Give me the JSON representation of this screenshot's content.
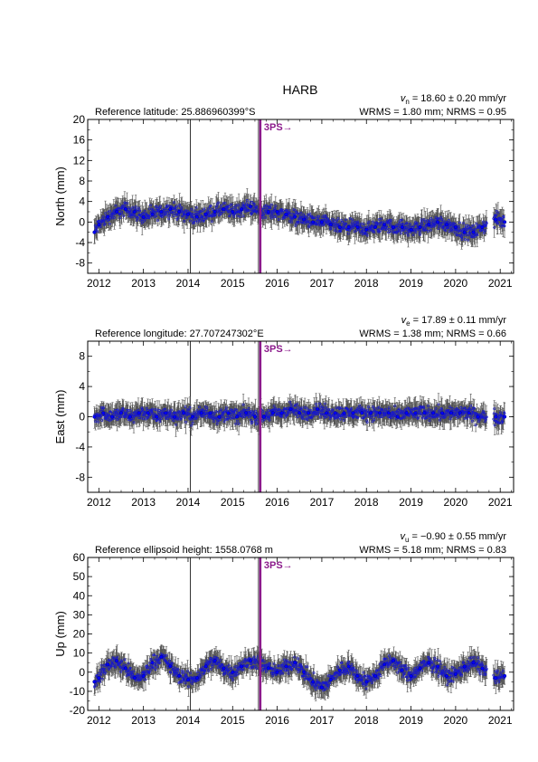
{
  "page_title": "HARB",
  "chart_data": [
    {
      "type": "scatter",
      "ylabel": "North (mm)",
      "reference": "Reference latitude: 25.886960399°S",
      "velocity": {
        "symbol": "v",
        "sub": "n",
        "text": "= 18.60 ± 0.20 mm/yr"
      },
      "rms": "WRMS = 1.80 mm; NRMS = 0.95",
      "xlim": [
        2011.75,
        2021.3
      ],
      "ylim": [
        -10,
        20
      ],
      "yticks": [
        "-8",
        "-4",
        "0",
        "4",
        "8",
        "12",
        "16",
        "20"
      ],
      "xticks": [
        "2012",
        "2013",
        "2014",
        "2015",
        "2016",
        "2017",
        "2018",
        "2019",
        "2020",
        "2021"
      ],
      "event_line": 2014.05,
      "offset_line": 2015.62,
      "offset_label": "3PS→",
      "series": [
        {
          "values": [
            [
              2011.9,
              -2
            ],
            [
              2012.0,
              -0.5
            ],
            [
              2012.2,
              1
            ],
            [
              2012.4,
              2
            ],
            [
              2012.6,
              2.5
            ],
            [
              2012.8,
              2
            ],
            [
              2013.0,
              1
            ],
            [
              2013.2,
              1.5
            ],
            [
              2013.4,
              2
            ],
            [
              2013.6,
              2.5
            ],
            [
              2013.8,
              2
            ],
            [
              2014.0,
              1.5
            ],
            [
              2014.2,
              1
            ],
            [
              2014.4,
              1.5
            ],
            [
              2014.6,
              2
            ],
            [
              2014.8,
              2.5
            ],
            [
              2015.0,
              2
            ],
            [
              2015.2,
              2.5
            ],
            [
              2015.4,
              3
            ],
            [
              2015.6,
              2
            ],
            [
              2015.8,
              2
            ],
            [
              2016.0,
              2
            ],
            [
              2016.2,
              1.5
            ],
            [
              2016.4,
              1
            ],
            [
              2016.6,
              0.5
            ],
            [
              2016.8,
              0
            ],
            [
              2017.0,
              0
            ],
            [
              2017.2,
              -0.5
            ],
            [
              2017.4,
              -1
            ],
            [
              2017.6,
              -1
            ],
            [
              2017.8,
              -1
            ],
            [
              2018.0,
              -1.5
            ],
            [
              2018.2,
              -1
            ],
            [
              2018.4,
              -0.5
            ],
            [
              2018.6,
              -1
            ],
            [
              2018.8,
              -1
            ],
            [
              2019.0,
              -1.5
            ],
            [
              2019.2,
              -1
            ],
            [
              2019.4,
              -0.5
            ],
            [
              2019.6,
              0
            ],
            [
              2019.8,
              -0.5
            ],
            [
              2020.0,
              -1
            ],
            [
              2020.2,
              -2
            ],
            [
              2020.4,
              -2
            ],
            [
              2020.6,
              -1
            ],
            [
              2020.9,
              0.5
            ],
            [
              2021.1,
              0
            ]
          ]
        }
      ]
    },
    {
      "type": "scatter",
      "ylabel": "East (mm)",
      "reference": "Reference longitude: 27.707247302°E",
      "velocity": {
        "symbol": "v",
        "sub": "e",
        "text": "= 17.89 ± 0.11 mm/yr"
      },
      "rms": "WRMS = 1.38 mm; NRMS = 0.66",
      "xlim": [
        2011.75,
        2021.3
      ],
      "ylim": [
        -10,
        10
      ],
      "yticks": [
        "-8",
        "-4",
        "0",
        "4",
        "8"
      ],
      "xticks": [
        "2012",
        "2013",
        "2014",
        "2015",
        "2016",
        "2017",
        "2018",
        "2019",
        "2020",
        "2021"
      ],
      "event_line": 2014.05,
      "offset_line": 2015.62,
      "offset_label": "3PS→",
      "series": [
        {
          "values": [
            [
              2011.9,
              0
            ],
            [
              2012.1,
              0.5
            ],
            [
              2012.3,
              0
            ],
            [
              2012.5,
              0.5
            ],
            [
              2012.7,
              0
            ],
            [
              2012.9,
              0.5
            ],
            [
              2013.1,
              0.5
            ],
            [
              2013.3,
              0
            ],
            [
              2013.5,
              0.5
            ],
            [
              2013.7,
              0
            ],
            [
              2013.9,
              0.5
            ],
            [
              2014.1,
              0
            ],
            [
              2014.3,
              0.5
            ],
            [
              2014.5,
              0.5
            ],
            [
              2014.7,
              0
            ],
            [
              2014.9,
              0.5
            ],
            [
              2015.1,
              0
            ],
            [
              2015.3,
              0.5
            ],
            [
              2015.5,
              0
            ],
            [
              2015.7,
              0
            ],
            [
              2015.9,
              0.5
            ],
            [
              2016.1,
              0.5
            ],
            [
              2016.3,
              1
            ],
            [
              2016.5,
              0.5
            ],
            [
              2016.7,
              0.5
            ],
            [
              2016.9,
              1
            ],
            [
              2017.1,
              0.5
            ],
            [
              2017.3,
              0.5
            ],
            [
              2017.5,
              0.5
            ],
            [
              2017.7,
              0.5
            ],
            [
              2017.9,
              0.5
            ],
            [
              2018.1,
              0.5
            ],
            [
              2018.3,
              0.5
            ],
            [
              2018.5,
              0.5
            ],
            [
              2018.7,
              0
            ],
            [
              2018.9,
              0.5
            ],
            [
              2019.1,
              0.5
            ],
            [
              2019.3,
              0.5
            ],
            [
              2019.5,
              0.5
            ],
            [
              2019.7,
              0.5
            ],
            [
              2019.9,
              0.5
            ],
            [
              2020.1,
              0.5
            ],
            [
              2020.3,
              0.5
            ],
            [
              2020.5,
              0
            ],
            [
              2020.9,
              0
            ],
            [
              2021.1,
              0
            ]
          ]
        }
      ]
    },
    {
      "type": "scatter",
      "ylabel": "Up (mm)",
      "reference": "Reference ellipsoid height: 1558.0768 m",
      "velocity": {
        "symbol": "v",
        "sub": "u",
        "text": "= −0.90 ± 0.55 mm/yr"
      },
      "rms": "WRMS = 5.18 mm; NRMS = 0.83",
      "xlim": [
        2011.75,
        2021.3
      ],
      "ylim": [
        -20,
        60
      ],
      "yticks": [
        "-20",
        "-10",
        "0",
        "10",
        "20",
        "30",
        "40",
        "50",
        "60"
      ],
      "xticks": [
        "2012",
        "2013",
        "2014",
        "2015",
        "2016",
        "2017",
        "2018",
        "2019",
        "2020",
        "2021"
      ],
      "event_line": 2014.05,
      "offset_line": 2015.62,
      "offset_label": "3PS→",
      "series": [
        {
          "values": [
            [
              2011.9,
              -5
            ],
            [
              2012.0,
              -3
            ],
            [
              2012.2,
              4
            ],
            [
              2012.4,
              6
            ],
            [
              2012.6,
              2
            ],
            [
              2012.8,
              -3
            ],
            [
              2013.0,
              -2
            ],
            [
              2013.2,
              5
            ],
            [
              2013.4,
              8
            ],
            [
              2013.6,
              3
            ],
            [
              2013.8,
              -2
            ],
            [
              2014.0,
              -4
            ],
            [
              2014.2,
              -3
            ],
            [
              2014.4,
              3
            ],
            [
              2014.6,
              6
            ],
            [
              2014.8,
              2
            ],
            [
              2015.0,
              0
            ],
            [
              2015.2,
              3
            ],
            [
              2015.4,
              6
            ],
            [
              2015.6,
              5
            ],
            [
              2015.8,
              2
            ],
            [
              2016.0,
              0
            ],
            [
              2016.2,
              3
            ],
            [
              2016.4,
              5
            ],
            [
              2016.6,
              0
            ],
            [
              2016.8,
              -5
            ],
            [
              2017.0,
              -8
            ],
            [
              2017.2,
              -4
            ],
            [
              2017.4,
              1
            ],
            [
              2017.6,
              3
            ],
            [
              2017.8,
              -2
            ],
            [
              2018.0,
              -5
            ],
            [
              2018.2,
              -2
            ],
            [
              2018.4,
              4
            ],
            [
              2018.6,
              6
            ],
            [
              2018.8,
              1
            ],
            [
              2019.0,
              -2
            ],
            [
              2019.2,
              2
            ],
            [
              2019.4,
              5
            ],
            [
              2019.6,
              3
            ],
            [
              2019.8,
              -2
            ],
            [
              2020.0,
              -1
            ],
            [
              2020.2,
              3
            ],
            [
              2020.4,
              5
            ],
            [
              2020.6,
              2
            ],
            [
              2020.9,
              -3
            ],
            [
              2021.1,
              -2
            ]
          ]
        }
      ]
    }
  ]
}
